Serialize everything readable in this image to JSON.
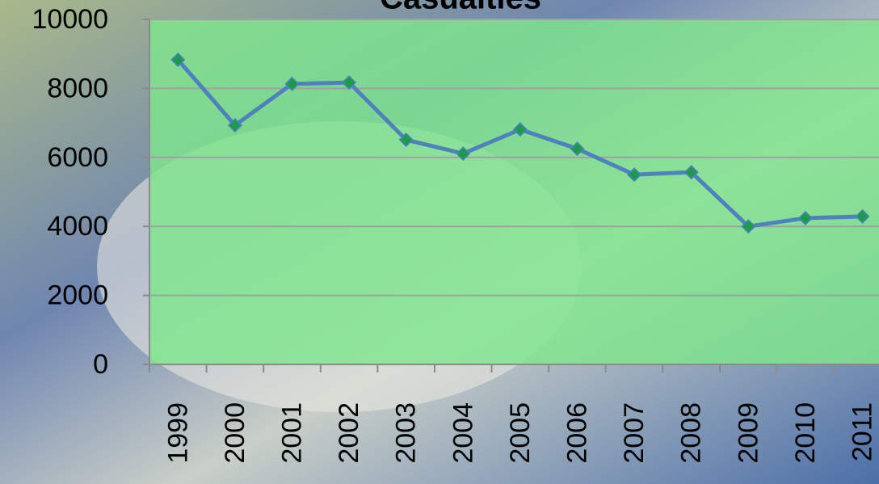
{
  "chart_data": {
    "type": "line",
    "title": "Casualties",
    "categories": [
      "1999",
      "2000",
      "2001",
      "2002",
      "2003",
      "2004",
      "2005",
      "2006",
      "2007",
      "2008",
      "2009",
      "2010",
      "2011"
    ],
    "values": [
      8830,
      6930,
      8130,
      8170,
      6510,
      6110,
      6810,
      6250,
      5500,
      5570,
      4000,
      4240,
      4290
    ],
    "color": "#4f81bd",
    "marker_color": "#1d9a4e",
    "ylim": [
      0,
      10000
    ],
    "yticks": [
      0,
      2000,
      4000,
      6000,
      8000,
      10000
    ],
    "grid": true
  }
}
